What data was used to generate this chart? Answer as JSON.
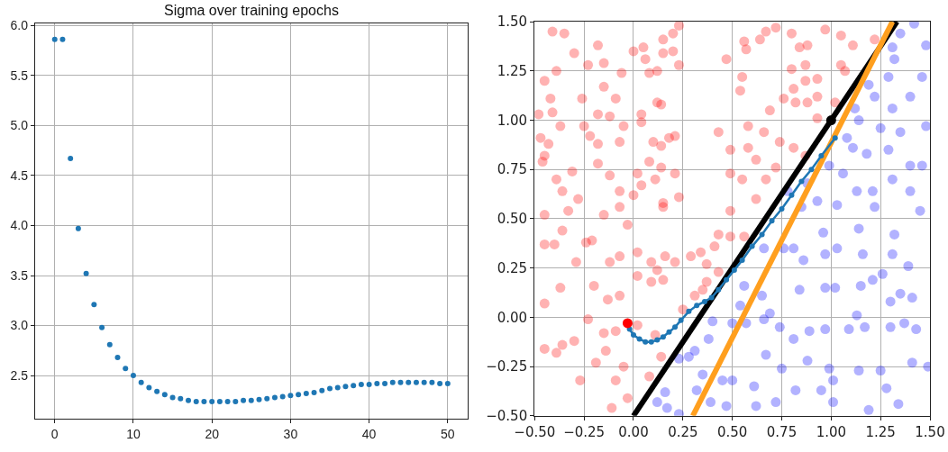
{
  "chart_data": [
    {
      "type": "scatter",
      "title": "Sigma over training epochs",
      "color": "#1f77b4",
      "marker": "circle",
      "grid": true,
      "x": [
        0,
        1,
        2,
        3,
        4,
        5,
        6,
        7,
        8,
        9,
        10,
        11,
        12,
        13,
        14,
        15,
        16,
        17,
        18,
        19,
        20,
        21,
        22,
        23,
        24,
        25,
        26,
        27,
        28,
        29,
        30,
        31,
        32,
        33,
        34,
        35,
        36,
        37,
        38,
        39,
        40,
        41,
        42,
        43,
        44,
        45,
        46,
        47,
        48,
        49,
        50
      ],
      "values": [
        5.86,
        5.86,
        4.67,
        3.97,
        3.52,
        3.21,
        2.98,
        2.81,
        2.68,
        2.57,
        2.5,
        2.43,
        2.38,
        2.34,
        2.31,
        2.28,
        2.27,
        2.25,
        2.24,
        2.24,
        2.24,
        2.24,
        2.24,
        2.24,
        2.25,
        2.25,
        2.26,
        2.27,
        2.28,
        2.29,
        2.3,
        2.31,
        2.32,
        2.33,
        2.35,
        2.37,
        2.38,
        2.39,
        2.4,
        2.41,
        2.41,
        2.42,
        2.42,
        2.43,
        2.43,
        2.43,
        2.43,
        2.43,
        2.43,
        2.42,
        2.42
      ],
      "xlim": [
        -2.5,
        52.5
      ],
      "xticks": [
        0,
        10,
        20,
        30,
        40,
        50
      ],
      "ylim": [
        2.07,
        6.02
      ],
      "yticks": [
        2.5,
        {
          "value": 3,
          "label": "3.0"
        },
        3.5,
        {
          "value": 4,
          "label": "4.0"
        },
        4.5,
        {
          "value": 5,
          "label": "5.0"
        },
        5.5,
        {
          "value": 6,
          "label": "6.0"
        }
      ]
    },
    {
      "type": "scatter",
      "grid": true,
      "xlim": [
        -0.5,
        1.5
      ],
      "ylim": [
        -0.5,
        1.5
      ],
      "xticks": [
        {
          "value": -0.5,
          "label": "−0.50"
        },
        {
          "value": -0.25,
          "label": "−0.25"
        },
        {
          "value": 0,
          "label": "0.00"
        },
        {
          "value": 0.25,
          "label": "0.25"
        },
        {
          "value": 0.5,
          "label": "0.50"
        },
        {
          "value": 0.75,
          "label": "0.75"
        },
        {
          "value": 1,
          "label": "1.00"
        },
        {
          "value": 1.25,
          "label": "1.25"
        },
        {
          "value": 1.5,
          "label": "1.50"
        }
      ],
      "yticks": [
        {
          "value": -0.5,
          "label": "−0.50"
        },
        {
          "value": -0.25,
          "label": "−0.25"
        },
        {
          "value": 0,
          "label": "0.00"
        },
        {
          "value": 0.25,
          "label": "0.25"
        },
        {
          "value": 0.5,
          "label": "0.50"
        },
        {
          "value": 0.75,
          "label": "0.75"
        },
        {
          "value": 1,
          "label": "1.00"
        },
        {
          "value": 1.25,
          "label": "1.25"
        },
        {
          "value": 1.5,
          "label": "1.50"
        }
      ],
      "series": [
        {
          "type": "scatter",
          "marker": "circle",
          "color": "#ff0000",
          "x": [
            -0.41,
            -0.35,
            -0.3,
            -0.23,
            -0.18,
            -0.39,
            -0.45,
            -0.26,
            -0.42,
            -0.48,
            -0.41,
            -0.37,
            -0.47,
            -0.43,
            -0.45,
            -0.46,
            -0.25,
            -0.22,
            -0.18,
            -0.15,
            -0.15,
            -0.09,
            -0.12,
            -0.06,
            -0.05,
            -0.18,
            -0.07,
            -0.18,
            -0.28,
            -0.36,
            -0.31,
            -0.39,
            -0.45,
            -0.33,
            -0.15,
            -0.12,
            -0.07,
            -0.07,
            0.0,
            0.04,
            0.11,
            0.08,
            0.1,
            0.14,
            0.18,
            0.21,
            0.14,
            0.12,
            0.08,
            0.12,
            0.06,
            0.05,
            0.0,
            0.15,
            0.2,
            0.23,
            0.23,
            0.15,
            0.2,
            0.15,
            0.15,
            0.23,
            0.04,
            0.04,
            0.14,
            0.02,
            0.21,
            0.47,
            0.57,
            0.56,
            0.64,
            0.67,
            0.72,
            0.8,
            0.84,
            0.88,
            0.8,
            0.87,
            0.93,
            0.97,
            1.05,
            1.11,
            1.22,
            1.05,
            1.07,
            0.82,
            0.81,
            0.88,
            0.93,
            0.87,
            0.69,
            0.58,
            0.66,
            0.43,
            0.49,
            0.58,
            0.62,
            0.72,
            0.81,
            0.87,
            0.74,
            0.49,
            0.55,
            0.67,
            0.62,
            0.49,
            0.76,
            0.55,
            0.54,
            0.93,
            1.02,
            -0.36,
            -0.45,
            -0.4,
            -0.24,
            -0.21,
            -0.29,
            -0.12,
            -0.07,
            -0.03,
            0.02,
            0.09,
            0.16,
            0.21,
            0.29,
            0.34,
            0.37,
            0.12,
            0.15,
            0.09,
            0.02,
            -0.07,
            -0.13,
            -0.2,
            -0.37,
            -0.45,
            -0.23,
            -0.15,
            -0.09,
            0.02,
            -0.45,
            -0.36,
            -0.3,
            -0.39,
            -0.19,
            -0.14,
            -0.05,
            -0.09,
            -0.27,
            -0.03,
            -0.11,
            0.08,
            0.14,
            0.11,
            0.25,
            0.31,
            0.35,
            0.37,
            0.41,
            0.56,
            0.49,
            0.43,
            0.43
          ],
          "values": [
            1.45,
            1.44,
            1.34,
            1.28,
            1.38,
            1.25,
            1.2,
            1.11,
            1.11,
            1.03,
            1.04,
            0.97,
            0.91,
            0.88,
            0.82,
            0.79,
            0.97,
            0.92,
            0.88,
            1.29,
            1.17,
            1.11,
            1.02,
            1.24,
            0.97,
            1.03,
            0.89,
            0.78,
            0.6,
            0.64,
            0.74,
            0.7,
            0.52,
            0.54,
            0.52,
            0.72,
            0.64,
            0.56,
            0.62,
            0.67,
            0.7,
            0.79,
            0.89,
            0.87,
            0.91,
            0.92,
            1.08,
            1.09,
            1.24,
            1.25,
            1.31,
            1.37,
            1.35,
            1.41,
            1.44,
            1.28,
            1.48,
            1.34,
            1.35,
            0.58,
            0.56,
            0.61,
            1.03,
            0.99,
            0.76,
            0.73,
            0.73,
            1.31,
            1.36,
            1.4,
            1.41,
            1.45,
            1.47,
            1.44,
            1.37,
            1.38,
            1.26,
            1.28,
            1.21,
            1.46,
            1.43,
            1.38,
            1.41,
            1.28,
            1.25,
            1.09,
            1.16,
            1.09,
            1.12,
            1.2,
            1.05,
            0.97,
            0.94,
            0.94,
            0.85,
            0.86,
            0.8,
            0.76,
            0.86,
            0.82,
            0.89,
            0.73,
            0.7,
            0.7,
            0.6,
            0.54,
            1.11,
            1.22,
            1.15,
            1.01,
            1.09,
            0.44,
            0.37,
            0.37,
            0.38,
            0.39,
            0.28,
            0.28,
            0.31,
            0.47,
            0.33,
            0.28,
            0.31,
            0.28,
            0.31,
            0.33,
            0.27,
            0.24,
            0.19,
            0.18,
            0.21,
            0.11,
            0.09,
            0.16,
            0.15,
            0.07,
            -0.01,
            -0.08,
            -0.07,
            -0.04,
            -0.16,
            -0.14,
            -0.12,
            -0.18,
            -0.23,
            -0.17,
            -0.25,
            -0.32,
            -0.32,
            -0.41,
            -0.46,
            -0.3,
            -0.2,
            -0.09,
            0.04,
            0.11,
            0.14,
            0.18,
            0.36,
            0.41,
            0.41,
            0.23,
            0.42
          ]
        },
        {
          "type": "scatter",
          "marker": "circle",
          "color": "#0000ff",
          "x": [
            1.35,
            1.42,
            1.31,
            1.32,
            1.48,
            1.46,
            1.4,
            1.29,
            1.19,
            1.22,
            1.31,
            1.14,
            1.12,
            1.25,
            1.35,
            1.48,
            1.11,
            1.18,
            1.29,
            1.4,
            1.46,
            0.99,
            1.06,
            1.13,
            1.22,
            1.21,
            1.31,
            1.4,
            1.45,
            0.93,
            0.85,
            1.03,
            0.88,
            0.78,
            1.08,
            0.4,
            0.38,
            0.31,
            0.28,
            0.23,
            0.35,
            0.32,
            0.39,
            0.16,
            0.17,
            0.12,
            0.23,
            0.66,
            0.76,
            0.81,
            0.86,
            0.96,
            1.03,
            0.97,
            1.16,
            1.14,
            1.32,
            1.31,
            1.39,
            1.26,
            1.15,
            1.21,
            1.35,
            1.41,
            1.3,
            1.02,
            0.97,
            0.84,
            0.65,
            0.56,
            0.54,
            0.69,
            0.66,
            0.57,
            0.5,
            0.74,
            0.89,
            0.97,
            0.81,
            1.09,
            1.17,
            1.13,
            1.3,
            1.37,
            1.43,
            0.67,
            0.75,
            0.88,
            0.99,
            1.01,
            1.14,
            1.25,
            1.41,
            1.49,
            0.5,
            0.61,
            0.82,
            0.95,
            1.28,
            0.72,
            1.01,
            0.62,
            1.19,
            1.34,
            0.45,
            0.47
          ],
          "values": [
            1.44,
            1.49,
            1.37,
            1.31,
            1.38,
            1.22,
            1.12,
            1.22,
            1.18,
            1.12,
            1.06,
            1.0,
            1.06,
            0.96,
            0.94,
            0.97,
            0.86,
            0.83,
            0.85,
            0.77,
            0.77,
            0.77,
            0.73,
            0.64,
            0.56,
            0.64,
            0.7,
            0.64,
            0.54,
            0.59,
            0.56,
            0.57,
            0.68,
            0.64,
            0.91,
            -0.02,
            -0.11,
            -0.17,
            -0.2,
            -0.21,
            -0.29,
            -0.37,
            -0.43,
            -0.38,
            -0.46,
            -0.43,
            -0.49,
            0.35,
            0.35,
            0.35,
            0.29,
            0.43,
            0.35,
            0.32,
            0.32,
            0.45,
            0.42,
            0.32,
            0.26,
            0.22,
            0.16,
            0.19,
            0.12,
            0.1,
            0.08,
            0.15,
            0.15,
            0.14,
            0.11,
            0.16,
            0.06,
            0.02,
            -0.01,
            -0.03,
            -0.03,
            -0.05,
            -0.07,
            -0.06,
            -0.11,
            -0.06,
            -0.05,
            0.01,
            -0.05,
            -0.03,
            -0.06,
            -0.19,
            -0.26,
            -0.22,
            -0.26,
            -0.32,
            -0.27,
            -0.27,
            -0.23,
            -0.25,
            -0.32,
            -0.35,
            -0.37,
            -0.37,
            -0.36,
            -0.43,
            -0.43,
            -0.45,
            -0.47,
            -0.44,
            -0.32,
            -0.45
          ]
        },
        {
          "type": "line",
          "marker": "none",
          "line_style": "solid",
          "color": "#000000",
          "x": [
            0,
            1.333
          ],
          "values": [
            -0.5,
            1.5
          ]
        },
        {
          "type": "line",
          "marker": "none",
          "line_style": "solid",
          "color": "#ff9f1e",
          "x": [
            0.3,
            1.31
          ],
          "values": [
            -0.5,
            1.5
          ]
        },
        {
          "type": "line",
          "marker": "circle",
          "line_style": "solid",
          "color": "#1f77b4",
          "x": [
            -0.02,
            0.0,
            0.03,
            0.06,
            0.09,
            0.12,
            0.15,
            0.18,
            0.21,
            0.24,
            0.28,
            0.32,
            0.36,
            0.395,
            0.43,
            0.47,
            0.51,
            0.55,
            0.6,
            0.65,
            0.7,
            0.75,
            0.8,
            0.85,
            0.9,
            0.95,
            1.02
          ],
          "values": [
            -0.06,
            -0.09,
            -0.11,
            -0.125,
            -0.125,
            -0.115,
            -0.1,
            -0.075,
            -0.05,
            -0.015,
            0.03,
            0.06,
            0.08,
            0.1,
            0.14,
            0.19,
            0.24,
            0.29,
            0.36,
            0.42,
            0.49,
            0.55,
            0.62,
            0.69,
            0.75,
            0.82,
            0.91
          ]
        },
        {
          "type": "scatter",
          "marker": "circle",
          "color": "#ff0000",
          "x": [
            -0.03
          ],
          "values": [
            -0.03
          ]
        },
        {
          "type": "scatter",
          "marker": "circle",
          "color": "#000000",
          "x": [
            1.0
          ],
          "values": [
            1.0
          ]
        }
      ]
    }
  ]
}
